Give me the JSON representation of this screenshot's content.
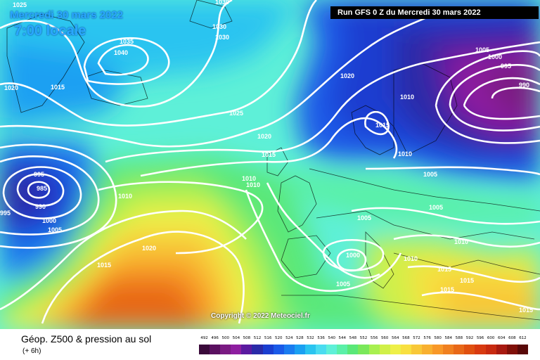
{
  "header": {
    "date": "Mercredi 30 mars 2022",
    "local_time": "7:00 locale",
    "run_info": "Run GFS 0 Z du Mercredi 30 mars 2022"
  },
  "copyright": "Copyright © 2022 Meteociel.fr",
  "footer": {
    "title": "Géop. Z500 & pression au sol",
    "subtitle": "(+ 6h)"
  },
  "legend_scale": {
    "values": [
      "492",
      "496",
      "500",
      "504",
      "508",
      "512",
      "516",
      "520",
      "524",
      "528",
      "532",
      "536",
      "540",
      "544",
      "548",
      "552",
      "556",
      "560",
      "564",
      "568",
      "572",
      "576",
      "580",
      "584",
      "588",
      "592",
      "596",
      "600",
      "604",
      "608",
      "612"
    ],
    "colors": [
      "#3a0a3a",
      "#5a1060",
      "#7a1a82",
      "#8e1ea0",
      "#5a1aa0",
      "#2a2aa8",
      "#1a3ed0",
      "#1a5ae8",
      "#1a7cf0",
      "#1aa0f2",
      "#2ac4f0",
      "#4adcf0",
      "#5ef0d8",
      "#5af0a8",
      "#5ae878",
      "#7ae85a",
      "#a8f050",
      "#d0f048",
      "#eef048",
      "#f8e040",
      "#f8c838",
      "#f8b030",
      "#f89828",
      "#f08020",
      "#e86818",
      "#e05010",
      "#d83a10",
      "#c82a10",
      "#a81a10",
      "#801008",
      "#580808"
    ]
  },
  "isobars": [
    {
      "id": "1025-nw",
      "text": "1025"
    },
    {
      "id": "1030-n1",
      "text": "1030"
    },
    {
      "id": "1030-n2",
      "text": "1030"
    },
    {
      "id": "1030-n3",
      "text": "1030"
    },
    {
      "id": "1035",
      "text": "1035"
    },
    {
      "id": "1040",
      "text": "1040"
    },
    {
      "id": "1020-w",
      "text": "1020"
    },
    {
      "id": "1015-w",
      "text": "1015"
    },
    {
      "id": "1025-c",
      "text": "1025"
    },
    {
      "id": "1020-n",
      "text": "1020"
    },
    {
      "id": "1020-c",
      "text": "1020"
    },
    {
      "id": "1015-c",
      "text": "1015"
    },
    {
      "id": "1010-scand",
      "text": "1010"
    },
    {
      "id": "1015-scand",
      "text": "1015"
    },
    {
      "id": "1010-scand2",
      "text": "1010"
    },
    {
      "id": "1005-ne",
      "text": "1005"
    },
    {
      "id": "1000-ne",
      "text": "1000"
    },
    {
      "id": "995-ne",
      "text": "995"
    },
    {
      "id": "990-ne",
      "text": "990"
    },
    {
      "id": "1005-e",
      "text": "1005"
    },
    {
      "id": "1005-ce",
      "text": "1005"
    },
    {
      "id": "995-w",
      "text": "995"
    },
    {
      "id": "985-w",
      "text": "985"
    },
    {
      "id": "990-w",
      "text": "990"
    },
    {
      "id": "995-w2",
      "text": "995"
    },
    {
      "id": "1000-w",
      "text": "1000"
    },
    {
      "id": "1005-w",
      "text": "1005"
    },
    {
      "id": "1010-atl",
      "text": "1010"
    },
    {
      "id": "1010-fr1",
      "text": "1010"
    },
    {
      "id": "1010-fr2",
      "text": "1010"
    },
    {
      "id": "1005-fr",
      "text": "1005"
    },
    {
      "id": "1020-sw",
      "text": "1020"
    },
    {
      "id": "1015-sw",
      "text": "1015"
    },
    {
      "id": "1000-med",
      "text": "1000"
    },
    {
      "id": "1005-med",
      "text": "1005"
    },
    {
      "id": "1010-it",
      "text": "1010"
    },
    {
      "id": "1010-balk",
      "text": "1010"
    },
    {
      "id": "1015-se1",
      "text": "1015"
    },
    {
      "id": "1015-se2",
      "text": "1015"
    },
    {
      "id": "1015-se3",
      "text": "1015"
    },
    {
      "id": "1015-se4",
      "text": "1015"
    }
  ]
}
